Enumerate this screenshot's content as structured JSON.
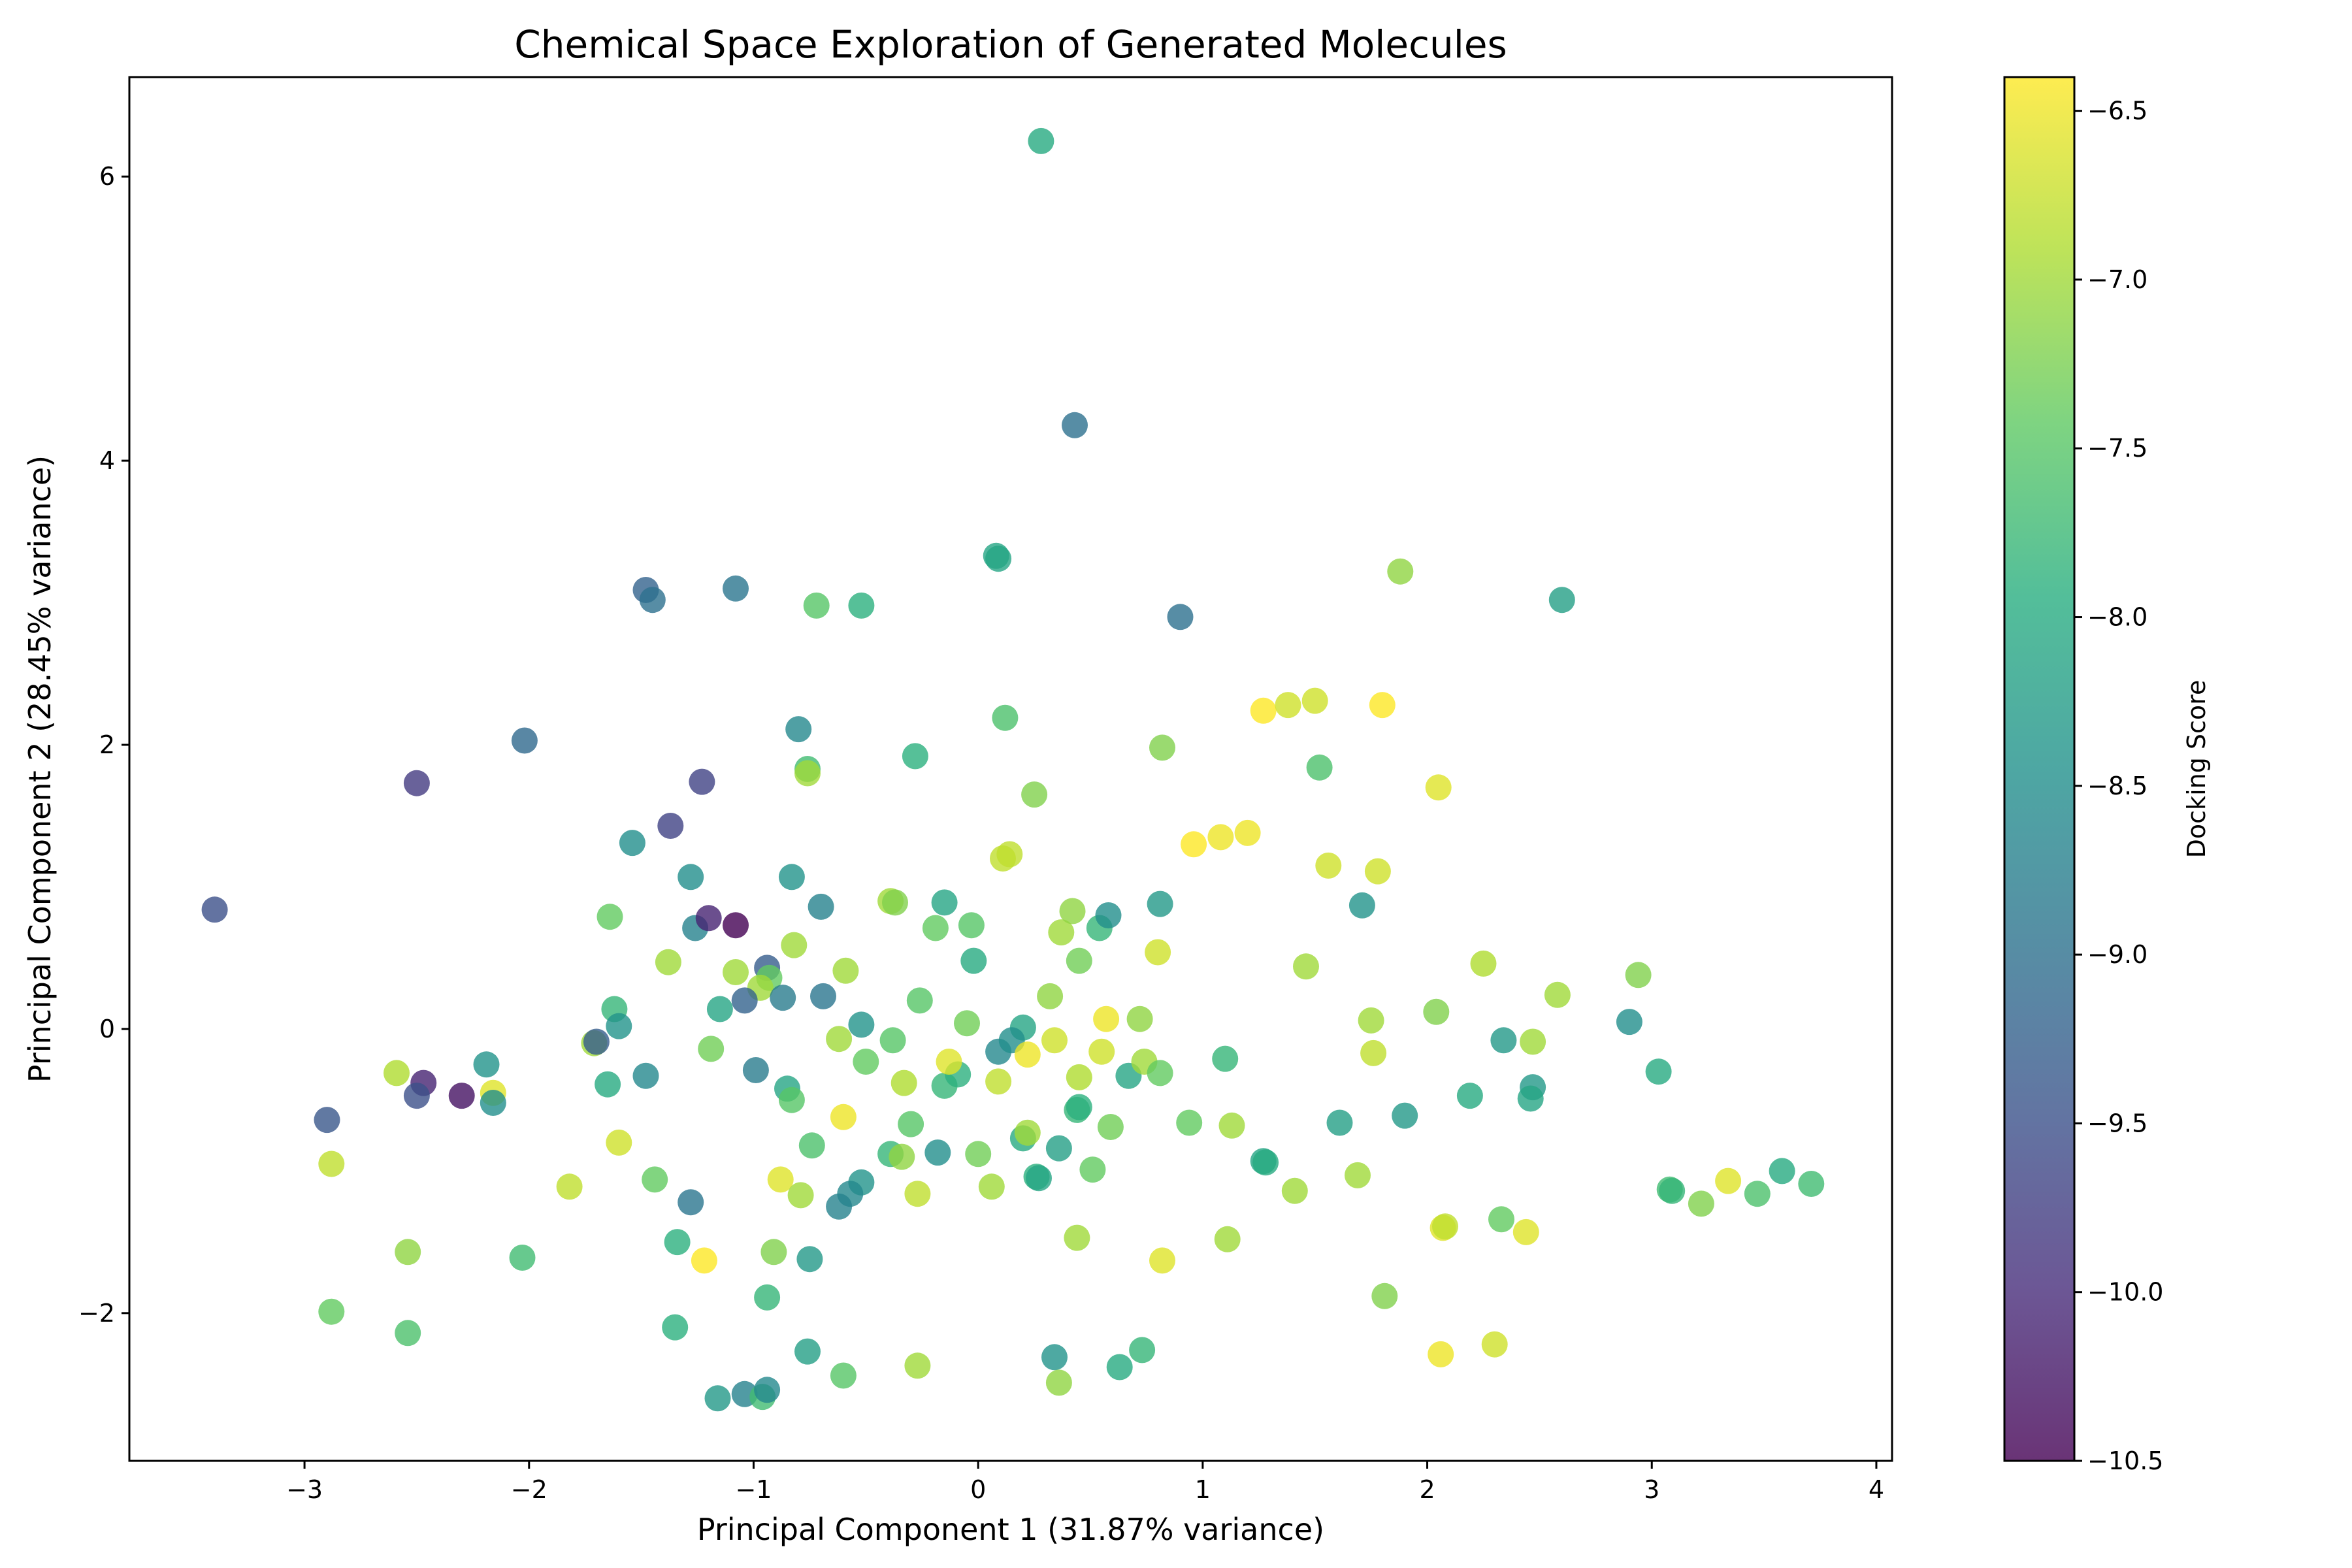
{
  "chart_data": {
    "type": "scatter",
    "title": "Chemical Space Exploration of Generated Molecules",
    "xlabel": "Principal Component 1 (31.87% variance)",
    "ylabel": "Principal Component 2 (28.45% variance)",
    "xlim": [
      -3.78,
      4.07
    ],
    "ylim": [
      -3.04,
      6.7
    ],
    "xticks": [
      -3,
      -2,
      -1,
      0,
      1,
      2,
      3,
      4
    ],
    "xtick_labels": [
      "−3",
      "−2",
      "−1",
      "0",
      "1",
      "2",
      "3",
      "4"
    ],
    "yticks": [
      -2,
      0,
      2,
      4,
      6
    ],
    "ytick_labels": [
      "−2",
      "0",
      "2",
      "4",
      "6"
    ],
    "grid": false,
    "colormap": "viridis",
    "colorbar": {
      "label": "Docking Score",
      "range": [
        -10.5,
        -6.4
      ],
      "ticks": [
        -10.5,
        -10.0,
        -9.5,
        -9.0,
        -8.5,
        -8.0,
        -7.5,
        -7.0,
        -6.5
      ],
      "tick_labels": [
        "−10.5",
        "−10.0",
        "−9.5",
        "−9.0",
        "−8.5",
        "−8.0",
        "−7.5",
        "−7.0",
        "−6.5"
      ]
    },
    "points": [
      {
        "x": 0.28,
        "y": 6.25,
        "score": -8.0
      },
      {
        "x": 0.43,
        "y": 4.25,
        "score": -9.0
      },
      {
        "x": 0.08,
        "y": 3.33,
        "score": -8.1
      },
      {
        "x": 0.09,
        "y": 3.31,
        "score": -8.1
      },
      {
        "x": 0.9,
        "y": 2.9,
        "score": -9.0
      },
      {
        "x": 1.88,
        "y": 3.22,
        "score": -7.1
      },
      {
        "x": 2.6,
        "y": 3.02,
        "score": -8.2
      },
      {
        "x": -1.48,
        "y": 3.09,
        "score": -9.2
      },
      {
        "x": -1.45,
        "y": 3.02,
        "score": -9.0
      },
      {
        "x": -1.08,
        "y": 3.1,
        "score": -8.9
      },
      {
        "x": -0.72,
        "y": 2.98,
        "score": -7.5
      },
      {
        "x": -0.52,
        "y": 2.98,
        "score": -7.9
      },
      {
        "x": -2.02,
        "y": 2.03,
        "score": -9.1
      },
      {
        "x": -2.5,
        "y": 1.73,
        "score": -9.8
      },
      {
        "x": -1.23,
        "y": 1.74,
        "score": -9.7
      },
      {
        "x": -0.8,
        "y": 2.11,
        "score": -8.6
      },
      {
        "x": -0.76,
        "y": 1.83,
        "score": -7.7
      },
      {
        "x": -0.76,
        "y": 1.8,
        "score": -7.0
      },
      {
        "x": -0.28,
        "y": 1.92,
        "score": -7.9
      },
      {
        "x": 0.12,
        "y": 2.19,
        "score": -7.6
      },
      {
        "x": 0.25,
        "y": 1.65,
        "score": -7.2
      },
      {
        "x": 0.82,
        "y": 1.98,
        "score": -7.2
      },
      {
        "x": 1.27,
        "y": 2.24,
        "score": -6.4
      },
      {
        "x": 1.38,
        "y": 2.28,
        "score": -6.7
      },
      {
        "x": 1.5,
        "y": 2.31,
        "score": -6.7
      },
      {
        "x": 1.8,
        "y": 2.28,
        "score": -6.4
      },
      {
        "x": 1.52,
        "y": 1.84,
        "score": -7.6
      },
      {
        "x": 2.05,
        "y": 1.7,
        "score": -6.6
      },
      {
        "x": -1.37,
        "y": 1.43,
        "score": -9.7
      },
      {
        "x": -1.54,
        "y": 1.31,
        "score": -8.5
      },
      {
        "x": 0.11,
        "y": 1.2,
        "score": -6.8
      },
      {
        "x": 0.14,
        "y": 1.23,
        "score": -6.8
      },
      {
        "x": 0.96,
        "y": 1.3,
        "score": -6.4
      },
      {
        "x": 1.08,
        "y": 1.35,
        "score": -6.5
      },
      {
        "x": 1.2,
        "y": 1.38,
        "score": -6.5
      },
      {
        "x": 1.56,
        "y": 1.15,
        "score": -6.7
      },
      {
        "x": 1.78,
        "y": 1.11,
        "score": -6.7
      },
      {
        "x": -3.4,
        "y": 0.84,
        "score": -9.5
      },
      {
        "x": -1.64,
        "y": 0.79,
        "score": -7.4
      },
      {
        "x": -1.28,
        "y": 1.07,
        "score": -8.5
      },
      {
        "x": -1.26,
        "y": 0.71,
        "score": -8.7
      },
      {
        "x": -1.2,
        "y": 0.78,
        "score": -10.1
      },
      {
        "x": -1.08,
        "y": 0.73,
        "score": -10.5
      },
      {
        "x": -0.83,
        "y": 1.07,
        "score": -8.4
      },
      {
        "x": -0.7,
        "y": 0.86,
        "score": -8.7
      },
      {
        "x": -0.39,
        "y": 0.9,
        "score": -7.0
      },
      {
        "x": -0.37,
        "y": 0.89,
        "score": -7.2
      },
      {
        "x": -0.15,
        "y": 0.89,
        "score": -8.1
      },
      {
        "x": -0.19,
        "y": 0.71,
        "score": -7.4
      },
      {
        "x": -0.03,
        "y": 0.73,
        "score": -7.5
      },
      {
        "x": 0.37,
        "y": 0.68,
        "score": -7.0
      },
      {
        "x": 0.42,
        "y": 0.83,
        "score": -7.1
      },
      {
        "x": 0.54,
        "y": 0.71,
        "score": -7.8
      },
      {
        "x": 0.58,
        "y": 0.8,
        "score": -8.5
      },
      {
        "x": 0.81,
        "y": 0.88,
        "score": -8.3
      },
      {
        "x": 0.8,
        "y": 0.54,
        "score": -6.7
      },
      {
        "x": 1.46,
        "y": 0.44,
        "score": -7.0
      },
      {
        "x": 1.71,
        "y": 0.87,
        "score": -8.4
      },
      {
        "x": -1.38,
        "y": 0.47,
        "score": -7.0
      },
      {
        "x": -1.08,
        "y": 0.4,
        "score": -7.0
      },
      {
        "x": -0.94,
        "y": 0.43,
        "score": -9.3
      },
      {
        "x": -0.93,
        "y": 0.36,
        "score": -7.4
      },
      {
        "x": -0.97,
        "y": 0.29,
        "score": -7.0
      },
      {
        "x": -0.82,
        "y": 0.59,
        "score": -7.0
      },
      {
        "x": -0.59,
        "y": 0.41,
        "score": -7.0
      },
      {
        "x": -0.02,
        "y": 0.48,
        "score": -8.0
      },
      {
        "x": 0.45,
        "y": 0.48,
        "score": -7.3
      },
      {
        "x": 2.25,
        "y": 0.46,
        "score": -6.9
      },
      {
        "x": 2.94,
        "y": 0.38,
        "score": -7.2
      },
      {
        "x": -1.62,
        "y": 0.14,
        "score": -7.8
      },
      {
        "x": -1.6,
        "y": 0.02,
        "score": -8.4
      },
      {
        "x": -1.15,
        "y": 0.14,
        "score": -8.1
      },
      {
        "x": -1.04,
        "y": 0.2,
        "score": -9.2
      },
      {
        "x": -0.87,
        "y": 0.22,
        "score": -8.8
      },
      {
        "x": -0.69,
        "y": 0.23,
        "score": -8.9
      },
      {
        "x": -0.26,
        "y": 0.2,
        "score": -7.5
      },
      {
        "x": -0.05,
        "y": 0.04,
        "score": -7.3
      },
      {
        "x": 0.2,
        "y": 0.01,
        "score": -8.1
      },
      {
        "x": 0.32,
        "y": 0.23,
        "score": -7.1
      },
      {
        "x": 0.57,
        "y": 0.07,
        "score": -6.5
      },
      {
        "x": 0.72,
        "y": 0.07,
        "score": -7.1
      },
      {
        "x": 1.75,
        "y": 0.06,
        "score": -7.0
      },
      {
        "x": 2.04,
        "y": 0.12,
        "score": -7.2
      },
      {
        "x": 2.58,
        "y": 0.24,
        "score": -7.0
      },
      {
        "x": 2.9,
        "y": 0.05,
        "score": -8.5
      },
      {
        "x": -2.59,
        "y": -0.31,
        "score": -6.9
      },
      {
        "x": -2.47,
        "y": -0.38,
        "score": -10.1
      },
      {
        "x": -2.5,
        "y": -0.47,
        "score": -9.5
      },
      {
        "x": -2.3,
        "y": -0.47,
        "score": -10.3
      },
      {
        "x": -2.19,
        "y": -0.25,
        "score": -8.4
      },
      {
        "x": -2.16,
        "y": -0.45,
        "score": -6.6
      },
      {
        "x": -2.16,
        "y": -0.52,
        "score": -8.5
      },
      {
        "x": -2.9,
        "y": -0.64,
        "score": -9.4
      },
      {
        "x": -1.71,
        "y": -0.1,
        "score": -7.0
      },
      {
        "x": -1.7,
        "y": -0.09,
        "score": -9.3
      },
      {
        "x": -1.65,
        "y": -0.39,
        "score": -8.0
      },
      {
        "x": -1.48,
        "y": -0.33,
        "score": -8.6
      },
      {
        "x": -1.19,
        "y": -0.14,
        "score": -7.3
      },
      {
        "x": -0.99,
        "y": -0.29,
        "score": -8.8
      },
      {
        "x": -0.85,
        "y": -0.42,
        "score": -8.1
      },
      {
        "x": -0.83,
        "y": -0.5,
        "score": -7.5
      },
      {
        "x": -0.62,
        "y": -0.07,
        "score": -7.0
      },
      {
        "x": -0.52,
        "y": 0.03,
        "score": -8.4
      },
      {
        "x": -0.5,
        "y": -0.23,
        "score": -7.4
      },
      {
        "x": -0.38,
        "y": -0.08,
        "score": -7.5
      },
      {
        "x": -0.33,
        "y": -0.38,
        "score": -6.9
      },
      {
        "x": -0.15,
        "y": -0.4,
        "score": -7.8
      },
      {
        "x": -0.09,
        "y": -0.32,
        "score": -7.9
      },
      {
        "x": -0.13,
        "y": -0.23,
        "score": -6.6
      },
      {
        "x": 0.09,
        "y": -0.37,
        "score": -6.8
      },
      {
        "x": 0.09,
        "y": -0.16,
        "score": -8.6
      },
      {
        "x": 0.15,
        "y": -0.08,
        "score": -8.5
      },
      {
        "x": 0.22,
        "y": -0.18,
        "score": -6.5
      },
      {
        "x": 0.34,
        "y": -0.08,
        "score": -6.7
      },
      {
        "x": 0.45,
        "y": -0.34,
        "score": -6.9
      },
      {
        "x": 0.55,
        "y": -0.16,
        "score": -6.7
      },
      {
        "x": 0.67,
        "y": -0.33,
        "score": -8.1
      },
      {
        "x": 0.74,
        "y": -0.23,
        "score": -7.0
      },
      {
        "x": 0.81,
        "y": -0.31,
        "score": -7.4
      },
      {
        "x": 1.1,
        "y": -0.21,
        "score": -7.8
      },
      {
        "x": 1.76,
        "y": -0.17,
        "score": -6.8
      },
      {
        "x": 2.34,
        "y": -0.08,
        "score": -8.3
      },
      {
        "x": 2.47,
        "y": -0.09,
        "score": -7.0
      },
      {
        "x": 2.47,
        "y": -0.41,
        "score": -8.3
      },
      {
        "x": 2.46,
        "y": -0.49,
        "score": -8.1
      },
      {
        "x": 3.03,
        "y": -0.3,
        "score": -8.0
      },
      {
        "x": 2.19,
        "y": -0.47,
        "score": -8.0
      },
      {
        "x": -2.88,
        "y": -0.95,
        "score": -6.8
      },
      {
        "x": -1.6,
        "y": -0.8,
        "score": -6.7
      },
      {
        "x": -1.82,
        "y": -1.11,
        "score": -6.8
      },
      {
        "x": -1.44,
        "y": -1.06,
        "score": -7.4
      },
      {
        "x": -1.28,
        "y": -1.22,
        "score": -8.9
      },
      {
        "x": -1.34,
        "y": -1.5,
        "score": -7.9
      },
      {
        "x": -0.88,
        "y": -1.06,
        "score": -6.6
      },
      {
        "x": -0.79,
        "y": -1.17,
        "score": -7.0
      },
      {
        "x": -0.74,
        "y": -0.82,
        "score": -7.6
      },
      {
        "x": -0.6,
        "y": -0.62,
        "score": -6.5
      },
      {
        "x": -0.52,
        "y": -1.08,
        "score": -8.4
      },
      {
        "x": -0.57,
        "y": -1.16,
        "score": -8.6
      },
      {
        "x": -0.62,
        "y": -1.25,
        "score": -8.7
      },
      {
        "x": -0.75,
        "y": -1.62,
        "score": -8.3
      },
      {
        "x": -0.3,
        "y": -0.67,
        "score": -7.5
      },
      {
        "x": -0.39,
        "y": -0.88,
        "score": -7.8
      },
      {
        "x": -0.34,
        "y": -0.9,
        "score": -7.1
      },
      {
        "x": -0.18,
        "y": -0.87,
        "score": -8.5
      },
      {
        "x": 0.0,
        "y": -0.88,
        "score": -7.3
      },
      {
        "x": -0.27,
        "y": -1.16,
        "score": -6.8
      },
      {
        "x": 0.06,
        "y": -1.11,
        "score": -7.0
      },
      {
        "x": 0.2,
        "y": -0.77,
        "score": -8.0
      },
      {
        "x": 0.22,
        "y": -0.73,
        "score": -7.0
      },
      {
        "x": 0.26,
        "y": -1.04,
        "score": -7.9
      },
      {
        "x": 0.27,
        "y": -1.05,
        "score": -8.1
      },
      {
        "x": 0.36,
        "y": -0.84,
        "score": -8.2
      },
      {
        "x": 0.44,
        "y": -0.57,
        "score": -7.8
      },
      {
        "x": 0.45,
        "y": -0.55,
        "score": -7.9
      },
      {
        "x": 0.51,
        "y": -0.99,
        "score": -7.4
      },
      {
        "x": 0.59,
        "y": -0.69,
        "score": -7.3
      },
      {
        "x": 0.94,
        "y": -0.66,
        "score": -7.4
      },
      {
        "x": 1.13,
        "y": -0.68,
        "score": -7.0
      },
      {
        "x": 1.27,
        "y": -0.93,
        "score": -8.1
      },
      {
        "x": 1.28,
        "y": -0.94,
        "score": -8.0
      },
      {
        "x": 1.61,
        "y": -0.66,
        "score": -8.2
      },
      {
        "x": 1.9,
        "y": -0.61,
        "score": -8.3
      },
      {
        "x": 1.69,
        "y": -1.03,
        "score": -7.0
      },
      {
        "x": 1.41,
        "y": -1.14,
        "score": -7.0
      },
      {
        "x": 0.44,
        "y": -1.47,
        "score": -7.0
      },
      {
        "x": 0.82,
        "y": -1.63,
        "score": -6.6
      },
      {
        "x": 1.11,
        "y": -1.48,
        "score": -7.0
      },
      {
        "x": 2.07,
        "y": -1.4,
        "score": -6.6
      },
      {
        "x": 2.08,
        "y": -1.39,
        "score": -6.8
      },
      {
        "x": 2.33,
        "y": -1.34,
        "score": -7.4
      },
      {
        "x": 2.44,
        "y": -1.43,
        "score": -6.6
      },
      {
        "x": 3.08,
        "y": -1.13,
        "score": -7.7
      },
      {
        "x": 3.09,
        "y": -1.14,
        "score": -7.8
      },
      {
        "x": 3.22,
        "y": -1.23,
        "score": -7.2
      },
      {
        "x": 3.34,
        "y": -1.07,
        "score": -6.6
      },
      {
        "x": 3.47,
        "y": -1.16,
        "score": -7.6
      },
      {
        "x": 3.58,
        "y": -1.0,
        "score": -8.0
      },
      {
        "x": 3.71,
        "y": -1.09,
        "score": -7.7
      },
      {
        "x": -2.54,
        "y": -1.57,
        "score": -7.1
      },
      {
        "x": -2.03,
        "y": -1.61,
        "score": -7.7
      },
      {
        "x": -1.22,
        "y": -1.63,
        "score": -6.4
      },
      {
        "x": -0.91,
        "y": -1.57,
        "score": -7.2
      },
      {
        "x": -0.94,
        "y": -1.89,
        "score": -7.8
      },
      {
        "x": -2.88,
        "y": -1.99,
        "score": -7.4
      },
      {
        "x": -2.54,
        "y": -2.14,
        "score": -7.6
      },
      {
        "x": -1.35,
        "y": -2.1,
        "score": -7.9
      },
      {
        "x": -0.76,
        "y": -2.27,
        "score": -8.2
      },
      {
        "x": -0.6,
        "y": -2.44,
        "score": -7.5
      },
      {
        "x": -0.27,
        "y": -2.37,
        "score": -7.0
      },
      {
        "x": 0.34,
        "y": -2.31,
        "score": -8.4
      },
      {
        "x": 0.36,
        "y": -2.49,
        "score": -7.1
      },
      {
        "x": 0.63,
        "y": -2.38,
        "score": -8.0
      },
      {
        "x": 0.73,
        "y": -2.26,
        "score": -7.8
      },
      {
        "x": 1.81,
        "y": -1.88,
        "score": -7.2
      },
      {
        "x": 2.06,
        "y": -2.29,
        "score": -6.5
      },
      {
        "x": 2.3,
        "y": -2.22,
        "score": -6.7
      },
      {
        "x": -1.16,
        "y": -2.6,
        "score": -8.3
      },
      {
        "x": -1.04,
        "y": -2.57,
        "score": -8.7
      },
      {
        "x": -0.96,
        "y": -2.59,
        "score": -7.7
      },
      {
        "x": -0.94,
        "y": -2.54,
        "score": -8.6
      }
    ]
  }
}
